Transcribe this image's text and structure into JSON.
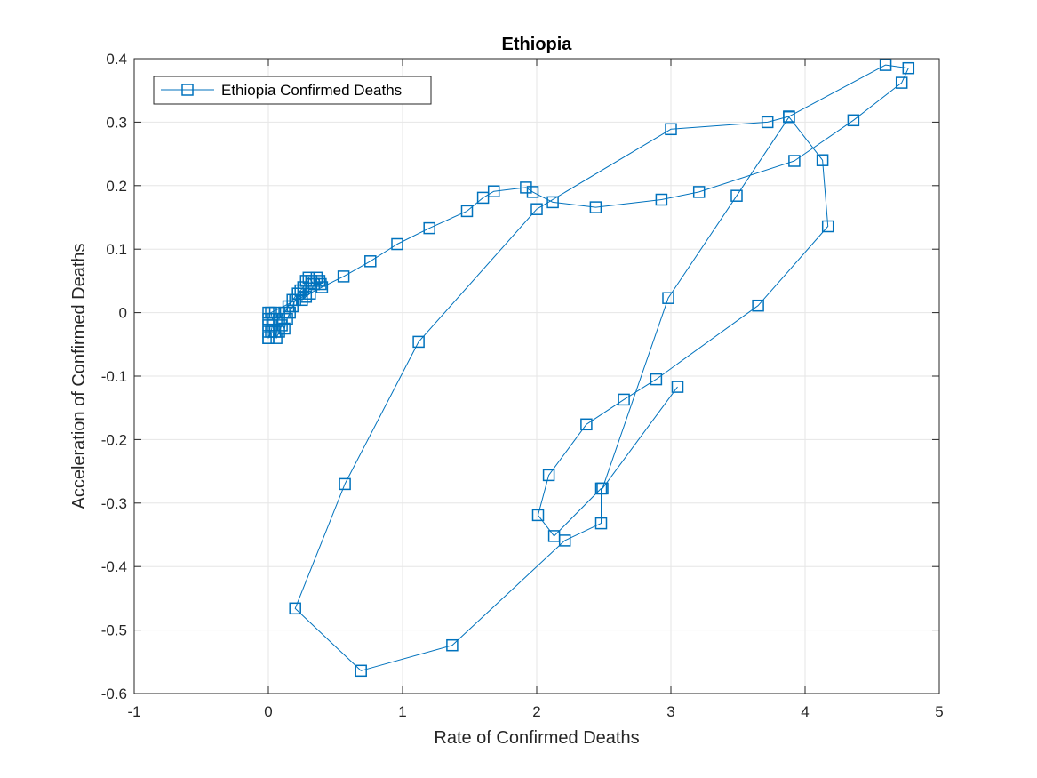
{
  "chart_data": {
    "type": "line",
    "title": "Ethiopia",
    "xlabel": "Rate of Confirmed Deaths",
    "ylabel": "Acceleration of Confirmed Deaths",
    "xlim": [
      -1,
      5
    ],
    "ylim": [
      -0.6,
      0.4
    ],
    "xticks": [
      -1,
      0,
      1,
      2,
      3,
      4,
      5
    ],
    "yticks": [
      -0.6,
      -0.5,
      -0.4,
      -0.3,
      -0.2,
      -0.1,
      0,
      0.1,
      0.2,
      0.3,
      0.4
    ],
    "xtick_labels": [
      "-1",
      "0",
      "1",
      "2",
      "3",
      "4",
      "5"
    ],
    "ytick_labels": [
      "-0.6",
      "-0.5",
      "-0.4",
      "-0.3",
      "-0.2",
      "-0.1",
      "0",
      "0.1",
      "0.2",
      "0.3",
      "0.4"
    ],
    "grid": true,
    "legend": {
      "position": "top-left",
      "entries": [
        "Ethiopia Confirmed Deaths"
      ]
    },
    "series": [
      {
        "name": "Ethiopia Confirmed Deaths",
        "color": "#0072BD",
        "marker": "square",
        "x": [
          0.0,
          0.0,
          0.0,
          0.0,
          0.0,
          0.0,
          0.02,
          0.03,
          0.05,
          0.06,
          0.08,
          0.1,
          0.12,
          0.14,
          0.16,
          0.18,
          0.2,
          0.22,
          0.24,
          0.26,
          0.28,
          0.3,
          0.32,
          0.34,
          0.36,
          0.38,
          0.4,
          0.39,
          0.34,
          0.31,
          0.28,
          0.25,
          0.22,
          0.18,
          0.15,
          0.12,
          0.08,
          0.05,
          0.03,
          0.02,
          0.56,
          0.76,
          0.96,
          1.2,
          1.48,
          1.6,
          1.68,
          1.92,
          1.97,
          2.12,
          2.44,
          2.93,
          3.21,
          3.92,
          4.36,
          4.72,
          4.77,
          4.6,
          3.88,
          3.72,
          3.0,
          2.0,
          1.12,
          0.57,
          0.2,
          0.69,
          1.37,
          2.21,
          2.48,
          2.48,
          2.13,
          2.01,
          2.09,
          2.37,
          2.65,
          2.89,
          3.65,
          4.17,
          4.13,
          3.88,
          3.49,
          2.98,
          2.49,
          3.05
        ],
        "y": [
          0.0,
          -0.01,
          -0.02,
          -0.03,
          -0.04,
          -0.04,
          -0.03,
          -0.02,
          -0.03,
          -0.04,
          -0.03,
          -0.02,
          -0.025,
          -0.01,
          0.0,
          0.01,
          0.02,
          0.03,
          0.035,
          0.04,
          0.05,
          0.055,
          0.05,
          0.045,
          0.055,
          0.05,
          0.04,
          0.045,
          0.045,
          0.03,
          0.025,
          0.02,
          0.03,
          0.02,
          0.01,
          0.0,
          -0.01,
          0.0,
          -0.01,
          0.0,
          0.057,
          0.081,
          0.108,
          0.133,
          0.16,
          0.181,
          0.191,
          0.197,
          0.19,
          0.174,
          0.166,
          0.178,
          0.19,
          0.239,
          0.303,
          0.362,
          0.385,
          0.39,
          0.309,
          0.3,
          0.289,
          0.163,
          -0.046,
          -0.27,
          -0.466,
          -0.564,
          -0.524,
          -0.359,
          -0.332,
          -0.277,
          -0.352,
          -0.319,
          -0.256,
          -0.176,
          -0.137,
          -0.105,
          0.011,
          0.136,
          0.24,
          0.308,
          0.184,
          0.023,
          -0.277,
          -0.117
        ]
      }
    ]
  }
}
